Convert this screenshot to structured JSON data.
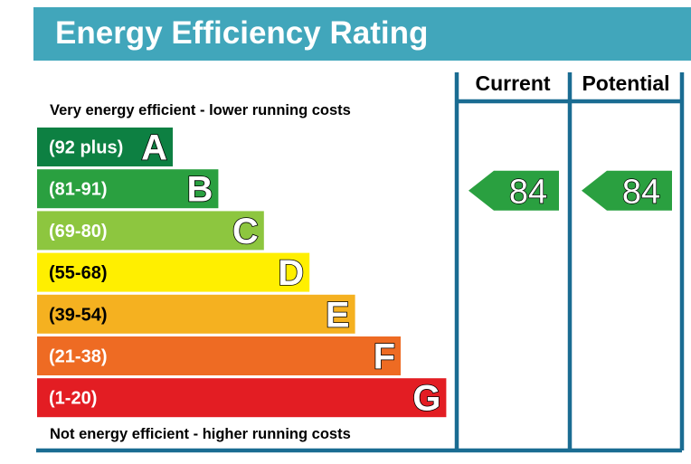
{
  "title": "Energy Efficiency Rating",
  "colors": {
    "title_bar": "#41a6bb",
    "frame": "#1a6c92"
  },
  "columns": {
    "current_label": "Current",
    "potential_label": "Potential"
  },
  "top_note": "Very energy efficient - lower running costs",
  "bottom_note": "Not energy efficient - higher running costs",
  "chart_data": {
    "type": "bar",
    "bands": [
      {
        "letter": "A",
        "range": "(92 plus)",
        "min": 92,
        "max": null,
        "color": "#0d8042"
      },
      {
        "letter": "B",
        "range": "(81-91)",
        "min": 81,
        "max": 91,
        "color": "#2aa040"
      },
      {
        "letter": "C",
        "range": "(69-80)",
        "min": 69,
        "max": 80,
        "color": "#8dc63f"
      },
      {
        "letter": "D",
        "range": "(55-68)",
        "min": 55,
        "max": 68,
        "color": "#ffef00"
      },
      {
        "letter": "E",
        "range": "(39-54)",
        "min": 39,
        "max": 54,
        "color": "#f5b120"
      },
      {
        "letter": "F",
        "range": "(21-38)",
        "min": 21,
        "max": 38,
        "color": "#ee6b23"
      },
      {
        "letter": "G",
        "range": "(1-20)",
        "min": 1,
        "max": 20,
        "color": "#e31d23"
      }
    ],
    "current": {
      "value": 84,
      "band": "B",
      "color": "#2aa040"
    },
    "potential": {
      "value": 84,
      "band": "B",
      "color": "#2aa040"
    }
  }
}
